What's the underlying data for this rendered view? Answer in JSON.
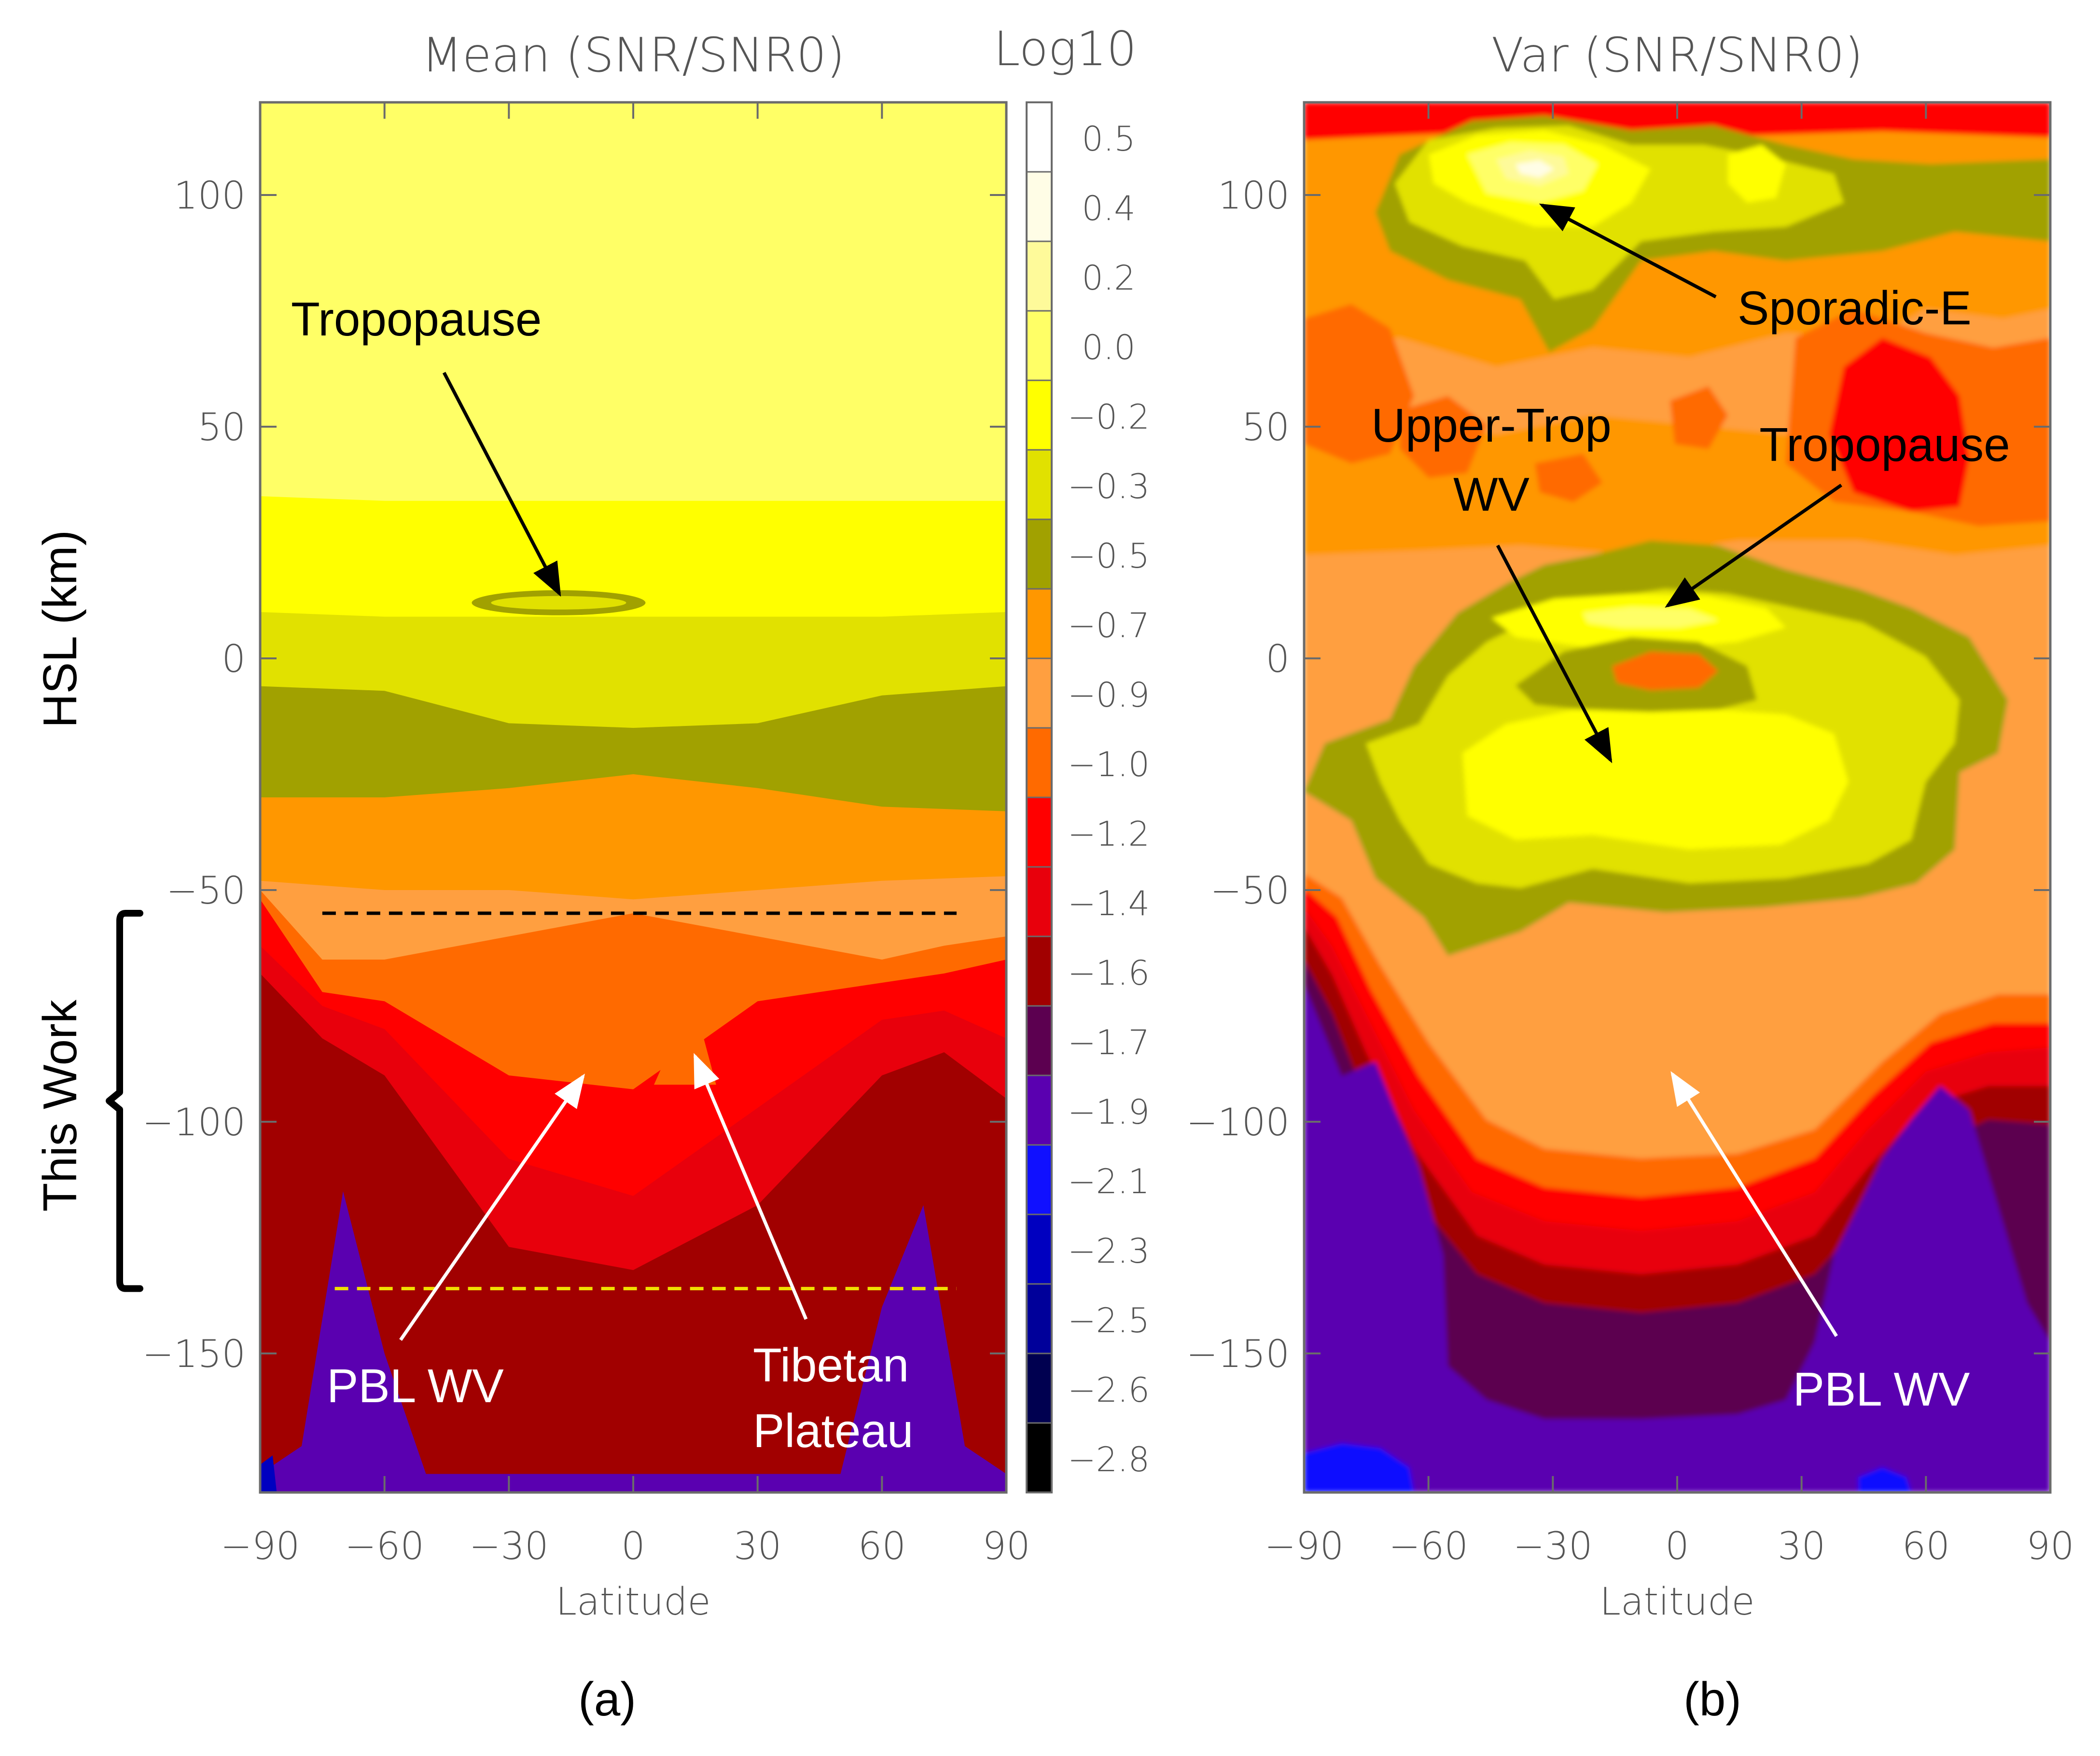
{
  "chart_data": [
    {
      "type": "heatmap",
      "panel": "(a)",
      "title": "Mean (SNR/SNR0)",
      "xlabel": "Latitude",
      "ylabel": "HSL (km)",
      "xlim": [
        -90,
        90
      ],
      "ylim": [
        -180,
        120
      ],
      "xticks": [
        -90,
        -60,
        -30,
        0,
        30,
        60,
        90
      ],
      "xtick_labels": [
        "−90",
        "−60",
        "−30",
        "0",
        "30",
        "60",
        "90"
      ],
      "yticks": [
        100,
        50,
        0,
        -50,
        -100,
        -150
      ],
      "ytick_labels": [
        "100",
        "50",
        "0",
        "−50",
        "−100",
        "−150"
      ],
      "contour_levels": [
        {
          "x": [
            -90,
            -60,
            -30,
            0,
            30,
            60,
            90
          ],
          "y": [
            35,
            34,
            34,
            34,
            34,
            34,
            34
          ],
          "level": -0.2
        },
        {
          "x": [
            -90,
            -60,
            -30,
            0,
            30,
            60,
            90
          ],
          "y": [
            10,
            9,
            9,
            9,
            9,
            9,
            10
          ],
          "level": -0.3
        },
        {
          "x": [
            -90,
            -60,
            -30,
            0,
            30,
            60,
            90
          ],
          "y": [
            -6,
            -7,
            -14,
            -15,
            -14,
            -8,
            -6
          ],
          "level": -0.5
        },
        {
          "x": [
            -90,
            -60,
            -30,
            0,
            30,
            60,
            90
          ],
          "y": [
            -30,
            -30,
            -28,
            -25,
            -28,
            -32,
            -33
          ],
          "level": -0.7
        },
        {
          "x": [
            -90,
            -60,
            -30,
            0,
            30,
            60,
            90
          ],
          "y": [
            -48,
            -50,
            -50,
            -52,
            -50,
            -48,
            -47
          ],
          "level": -0.9
        },
        {
          "x": [
            -90,
            -75,
            -60,
            -30,
            0,
            30,
            60,
            75,
            90
          ],
          "y": [
            -50,
            -65,
            -65,
            -60,
            -55,
            -60,
            -65,
            -62,
            -60
          ],
          "level": -1.0
        },
        {
          "x": [
            -90,
            -75,
            -60,
            -30,
            0,
            30,
            60,
            75,
            90
          ],
          "y": [
            -52,
            -72,
            -74,
            -90,
            -93,
            -74,
            -70,
            -68,
            -65
          ],
          "level": -1.2
        },
        {
          "x": [
            -90,
            -75,
            -60,
            -30,
            0,
            30,
            60,
            75,
            90
          ],
          "y": [
            -62,
            -75,
            -80,
            -108,
            -116,
            -97,
            -78,
            -76,
            -82
          ],
          "level": -1.4
        },
        {
          "x": [
            -90,
            -75,
            -60,
            -30,
            0,
            30,
            60,
            75,
            90
          ],
          "y": [
            -68,
            -82,
            -90,
            -127,
            -132,
            -118,
            -90,
            -85,
            -95
          ],
          "level": -1.6
        },
        {
          "x": [
            -90,
            -80,
            -70,
            -60,
            -50,
            0,
            50,
            60,
            70,
            80,
            90
          ],
          "y": [
            -176,
            -170,
            -115,
            -150,
            -176,
            -176,
            -176,
            -140,
            -118,
            -170,
            -176
          ],
          "level": -1.9
        }
      ],
      "dashed_lines": [
        {
          "y": -55,
          "x": [
            -75,
            78
          ],
          "color": "black"
        },
        {
          "y": -136,
          "x": [
            -72,
            78
          ],
          "color": "#f0e000"
        }
      ],
      "annotations": [
        {
          "text": "Tropopause",
          "color": "black",
          "target": [
            -18,
            14
          ]
        },
        {
          "text": "PBL WV",
          "color": "white",
          "target": [
            -12,
            -90
          ]
        },
        {
          "text": "Tibetan",
          "color": "white",
          "target": [
            14,
            -86
          ]
        },
        {
          "text": "Plateau",
          "color": "white",
          "target": [
            14,
            -86
          ]
        }
      ],
      "bracket_label": "This Work",
      "bracket_range": [
        -55,
        -136
      ],
      "panel_label": "(a)"
    },
    {
      "type": "heatmap",
      "panel": "(b)",
      "title": "Var (SNR/SNR0)",
      "xlabel": "Latitude",
      "xlim": [
        -90,
        90
      ],
      "ylim": [
        -180,
        120
      ],
      "xticks": [
        -90,
        -60,
        -30,
        0,
        30,
        60,
        90
      ],
      "xtick_labels": [
        "−90",
        "−60",
        "−30",
        "0",
        "30",
        "60",
        "90"
      ],
      "yticks": [
        100,
        50,
        0,
        -50,
        -100,
        -150
      ],
      "ytick_labels": [
        "100",
        "50",
        "0",
        "−50",
        "−100",
        "−150"
      ],
      "features": [
        {
          "name": "Sporadic-E",
          "lat_center": -30,
          "alt_center": 104,
          "peak_level": 0.4
        },
        {
          "name": "Tropopause",
          "lat_center": 0,
          "alt_center": 10,
          "peak_level": 0.0
        },
        {
          "name": "Upper-Trop WV",
          "lat_center": -15,
          "alt_center": -25,
          "peak_level": -0.2
        },
        {
          "name": "PBL WV",
          "lat_center": 0,
          "alt_center": -95,
          "peak_level": -0.9
        }
      ],
      "annotations": [
        {
          "text": "Sporadic-E",
          "color": "black",
          "target": [
            -32,
            98
          ]
        },
        {
          "text": "Upper-Trop",
          "color": "black",
          "target": [
            -17,
            -21
          ]
        },
        {
          "text": "WV",
          "color": "black",
          "target": [
            -17,
            -21
          ]
        },
        {
          "text": "Tropopause",
          "color": "black",
          "target": [
            0,
            12
          ]
        },
        {
          "text": "PBL WV",
          "color": "white",
          "target": [
            0,
            -90
          ]
        }
      ],
      "panel_label": "(b)"
    }
  ],
  "colorbar": {
    "title": "Log10",
    "levels": [
      0.5,
      0.4,
      0.2,
      0.0,
      -0.2,
      -0.3,
      -0.5,
      -0.7,
      -0.9,
      -1.0,
      -1.2,
      -1.4,
      -1.6,
      -1.7,
      -1.9,
      -2.1,
      -2.3,
      -2.5,
      -2.6,
      -2.8
    ],
    "labels": [
      "0.5",
      "0.4",
      "0.2",
      "0.0",
      "−0.2",
      "−0.3",
      "−0.5",
      "−0.7",
      "−0.9",
      "−1.0",
      "−1.2",
      "−1.4",
      "−1.6",
      "−1.7",
      "−1.9",
      "−2.1",
      "−2.3",
      "−2.5",
      "−2.6",
      "−2.8"
    ],
    "colors": [
      "#ffffff",
      "#fffde6",
      "#fefa9a",
      "#ffff66",
      "#ffff00",
      "#e1e100",
      "#a1a100",
      "#ff9700",
      "#ff9f40",
      "#ff6a00",
      "#ff0000",
      "#e8000c",
      "#a10000",
      "#5c0050",
      "#5a00b0",
      "#1010ff",
      "#0000c0",
      "#00009a",
      "#000050",
      "#000000"
    ]
  }
}
